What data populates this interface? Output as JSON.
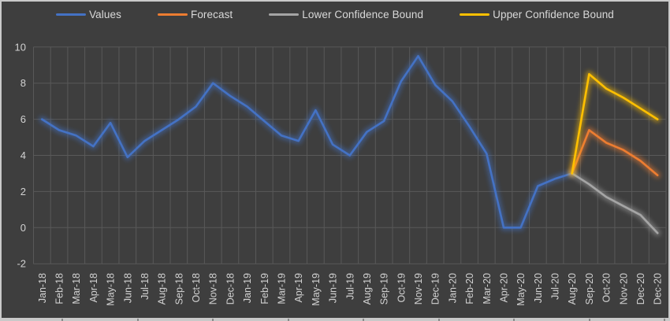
{
  "theme": {
    "background": "#3E3E3E",
    "gridline_color": "#595959",
    "axis_text_color": "#D2D2D2",
    "legend_text_color": "#D9D9D9",
    "frame_border_color": "#C9C9C9"
  },
  "chart_data": {
    "type": "line",
    "title": "",
    "xlabel": "",
    "ylabel": "",
    "grid": true,
    "legend_position": "top",
    "y_axis": {
      "min": -2,
      "max": 10,
      "ticks": [
        10,
        8,
        6,
        4,
        2,
        0,
        -2
      ]
    },
    "categories": [
      "Jan-18",
      "Feb-18",
      "Mar-18",
      "Apr-18",
      "May-18",
      "Jun-18",
      "Jul-18",
      "Aug-18",
      "Sep-18",
      "Oct-18",
      "Nov-18",
      "Dec-18",
      "Jan-19",
      "Feb-19",
      "Mar-19",
      "Apr-19",
      "May-19",
      "Jun-19",
      "Jul-19",
      "Aug-19",
      "Sep-19",
      "Oct-19",
      "Nov-19",
      "Dec-19",
      "Jan-20",
      "Feb-20",
      "Mar-20",
      "Apr-20",
      "May-20",
      "Jun-20",
      "Jul-20",
      "Aug-20",
      "Sep-20",
      "Oct-20",
      "Nov-20",
      "Dec-20",
      "Dec-20"
    ],
    "series": [
      {
        "name": "Values",
        "color": "#4472C4",
        "values": [
          6.0,
          5.4,
          5.1,
          4.5,
          5.8,
          3.9,
          4.8,
          5.4,
          6.0,
          6.7,
          8.0,
          7.3,
          6.7,
          5.9,
          5.1,
          4.8,
          6.5,
          4.6,
          4.0,
          5.3,
          5.9,
          8.1,
          9.5,
          7.9,
          7.0,
          5.6,
          4.1,
          0.0,
          0.0,
          2.3,
          2.7,
          3.0,
          null,
          null,
          null,
          null,
          null
        ]
      },
      {
        "name": "Forecast",
        "color": "#ED7D31",
        "values": [
          null,
          null,
          null,
          null,
          null,
          null,
          null,
          null,
          null,
          null,
          null,
          null,
          null,
          null,
          null,
          null,
          null,
          null,
          null,
          null,
          null,
          null,
          null,
          null,
          null,
          null,
          null,
          null,
          null,
          null,
          null,
          3.0,
          5.4,
          4.7,
          4.3,
          3.7,
          2.9
        ]
      },
      {
        "name": "Lower Confidence Bound",
        "color": "#A5A5A5",
        "values": [
          null,
          null,
          null,
          null,
          null,
          null,
          null,
          null,
          null,
          null,
          null,
          null,
          null,
          null,
          null,
          null,
          null,
          null,
          null,
          null,
          null,
          null,
          null,
          null,
          null,
          null,
          null,
          null,
          null,
          null,
          null,
          3.0,
          2.4,
          1.7,
          1.2,
          0.7,
          -0.3
        ]
      },
      {
        "name": "Upper Confidence Bound",
        "color": "#FFC000",
        "values": [
          null,
          null,
          null,
          null,
          null,
          null,
          null,
          null,
          null,
          null,
          null,
          null,
          null,
          null,
          null,
          null,
          null,
          null,
          null,
          null,
          null,
          null,
          null,
          null,
          null,
          null,
          null,
          null,
          null,
          null,
          null,
          3.0,
          8.5,
          7.7,
          7.2,
          6.6,
          6.0
        ]
      }
    ]
  }
}
